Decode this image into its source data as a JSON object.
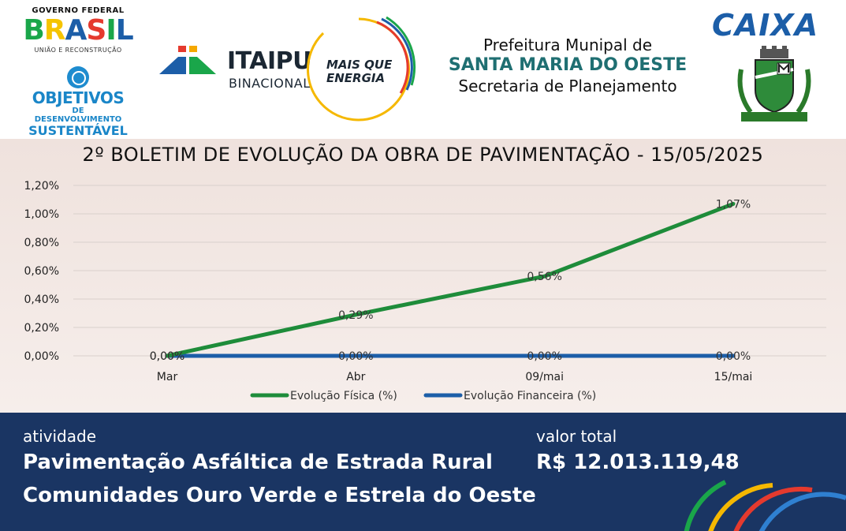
{
  "header": {
    "gov": {
      "top": "GOVERNO FEDERAL",
      "word_letters": [
        {
          "char": "B",
          "color": "#1aa64a"
        },
        {
          "char": "R",
          "color": "#f5c400"
        },
        {
          "char": "A",
          "color": "#1c5ea8"
        },
        {
          "char": "S",
          "color": "#e53a2e"
        },
        {
          "char": "I",
          "color": "#1aa64a"
        },
        {
          "char": "L",
          "color": "#1c5ea8"
        }
      ],
      "sub": "UNIÃO E RECONSTRUÇÃO"
    },
    "ods": {
      "line1": "OBJETIVOS",
      "line2": "DE DESENVOLVIMENTO",
      "line3": "SUSTENTÁVEL"
    },
    "itaipu": {
      "name": "ITAIPU",
      "sub": "BINACIONAL"
    },
    "mqe": {
      "line1": "MAIS QUE",
      "line2": "ENERGIA"
    },
    "prefeitura": {
      "line1": "Prefeitura Munipal de",
      "line2": "SANTA MARIA DO OESTE",
      "line3": "Secretaria de Planejamento"
    },
    "caixa": "CAIXA"
  },
  "chart_data": {
    "type": "line",
    "title": "2º BOLETIM DE EVOLUÇÃO DA OBRA DE PAVIMENTAÇÃO - 15/05/2025",
    "categories": [
      "Mar",
      "Abr",
      "09/mai",
      "15/mai"
    ],
    "y_ticks": [
      "0,00%",
      "0,20%",
      "0,40%",
      "0,60%",
      "0,80%",
      "1,00%",
      "1,20%"
    ],
    "ylim": [
      0,
      1.2
    ],
    "grid": true,
    "legend_position": "bottom",
    "series": [
      {
        "name": "Evolução Física (%)",
        "color": "#1e8c3a",
        "values": [
          0,
          0.29,
          0.56,
          1.07
        ],
        "labels": [
          "0,00%",
          "0,29%",
          "0,56%",
          "1,07%"
        ]
      },
      {
        "name": "Evolução Financeira (%)",
        "color": "#1c5ea8",
        "values": [
          0,
          0,
          0,
          0
        ],
        "labels": [
          "0,00%",
          "0,00%",
          "0,00%",
          "0,00%"
        ]
      }
    ]
  },
  "footer": {
    "atividade_label": "atividade",
    "atividade_line1": "Pavimentação Asfáltica de Estrada Rural",
    "atividade_line2": "Comunidades Ouro Verde e Estrela do Oeste",
    "valor_label": "valor total",
    "valor": "R$ 12.013.119,48"
  }
}
